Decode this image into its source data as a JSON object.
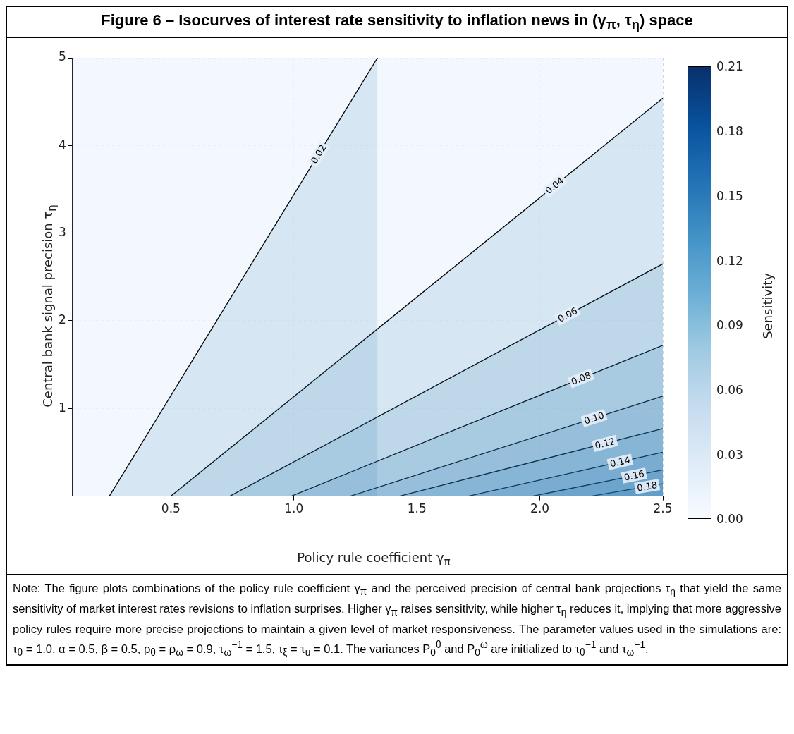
{
  "chart_data": {
    "type": "line",
    "title": "Figure 6 – Isocurves of interest rate sensitivity to inflation news in (γ$_{π}$, τ$_{η}$) space",
    "xlabel": "Policy rule coefficient γ$_{π}$",
    "ylabel": "Central bank signal precision τ$_{η}$",
    "clabel": "Sensitivity",
    "clim": [
      0,
      0.21
    ],
    "cticks": [
      {
        "value": 0,
        "label": "0.00"
      },
      0.03,
      0.06,
      0.09,
      0.12,
      0.15,
      0.18,
      0.21
    ],
    "xlim": [
      0.1,
      2.5
    ],
    "xticks": [
      0.5,
      {
        "value": 1,
        "label": "1.0"
      },
      1.5,
      {
        "value": 2,
        "label": "2.0"
      },
      2.5
    ],
    "ylim": [
      0,
      5
    ],
    "yticks": [
      1,
      2,
      3,
      4,
      5
    ],
    "grid": true,
    "legend": false,
    "marker": "none",
    "line_style": "solid",
    "series": [
      {
        "name": "0.02",
        "color": "#000000",
        "x": [
          0.25,
          1.34
        ],
        "values": [
          0,
          5
        ]
      },
      {
        "name": "0.04",
        "color": "#000000",
        "x": [
          0.5,
          2.5
        ],
        "values": [
          0,
          4.54
        ]
      },
      {
        "name": "0.06",
        "color": "#000000",
        "x": [
          0.74,
          2.5
        ],
        "values": [
          0,
          2.65
        ]
      },
      {
        "name": "0.08",
        "color": "#000000",
        "x": [
          0.99,
          2.5
        ],
        "values": [
          0,
          1.72
        ]
      },
      {
        "name": "0.10",
        "color": "#000000",
        "x": [
          1.23,
          2.5
        ],
        "values": [
          0,
          1.14
        ]
      },
      {
        "name": "0.12",
        "color": "#000000",
        "x": [
          1.43,
          2.5
        ],
        "values": [
          0,
          0.77
        ]
      },
      {
        "name": "0.14",
        "color": "#000000",
        "x": [
          1.71,
          2.5
        ],
        "values": [
          0,
          0.5
        ]
      },
      {
        "name": "0.16",
        "color": "#000000",
        "x": [
          1.97,
          2.5
        ],
        "values": [
          0,
          0.3
        ]
      },
      {
        "name": "0.18",
        "color": "#000000",
        "x": [
          2.21,
          2.5
        ],
        "values": [
          0,
          0.14
        ]
      }
    ],
    "annotations": [
      "Note: The figure plots combinations of the policy rule coefficient γ$_{π}$ and the perceived precision of central bank projections τ$_{η}$ that yield the same sensitivity of market interest rates revisions to inflation surprises. Higher γ$_{π}$ raises sensitivity, while higher τ$_{η}$ reduces it, implying that more aggressive policy rules require more precise projections to maintain a given level of market responsiveness. The parameter values used in the simulations are: τ$_{θ}$ = 1.0, α = 0.5, β = 0.5, ρ$_{θ}$ = ρ$_{ω}$ = 0.9, τ$_{ω}$$^{−1}$ = 1.5, τ$_{ξ}$ = τ$_{u}$ = 0.1. The variances P$_{0}$$^{θ}$ and P$_{0}$$^{ω}$ are initialized to τ$_{θ}$$^{−1}$ and τ$_{ω}$$^{−1}$."
    ]
  }
}
